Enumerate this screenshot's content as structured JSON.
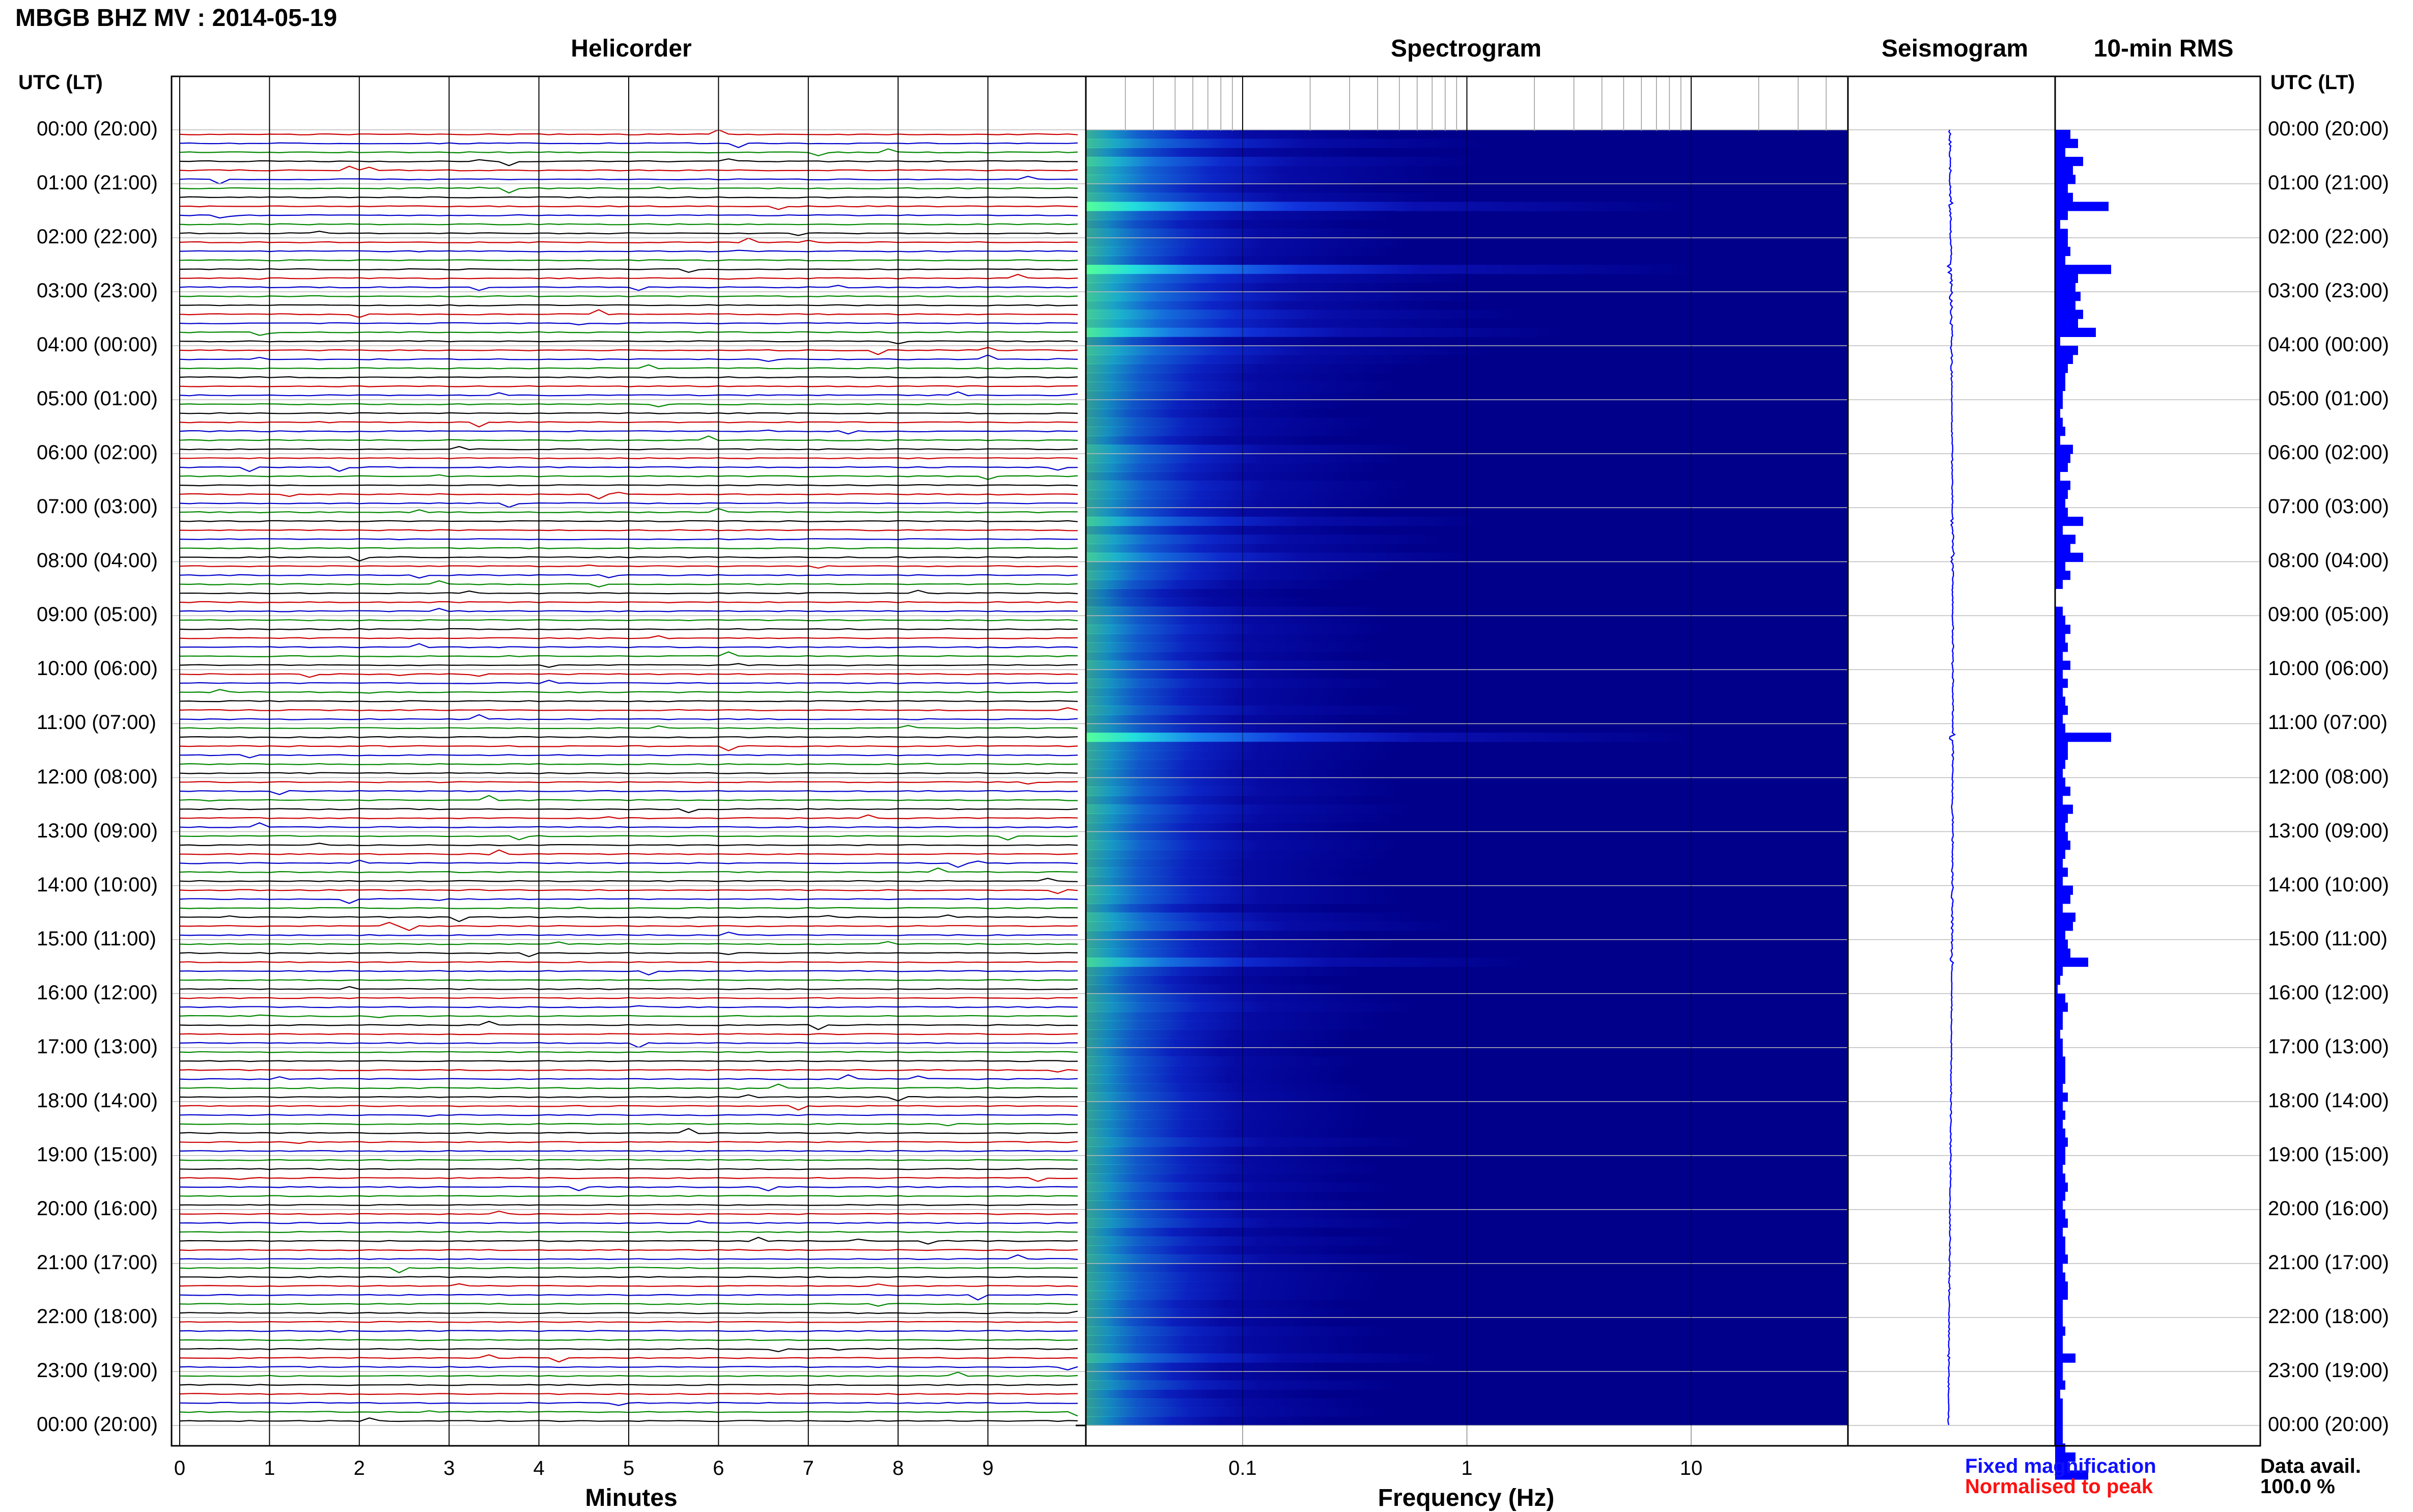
{
  "header": {
    "title": "MBGB BHZ MV : 2014-05-19"
  },
  "panels": {
    "helicorder": "Helicorder",
    "spectrogram": "Spectrogram",
    "seismogram": "Seismogram",
    "rms": "10-min RMS"
  },
  "axes": {
    "utc_left": "UTC (LT)",
    "utc_right": "UTC (LT)",
    "minutes_label": "Minutes",
    "frequency_label": "Frequency (Hz)"
  },
  "legend": {
    "fixed": "Fixed magnification",
    "normalised": "Normalised to peak"
  },
  "availability": {
    "label": "Data avail.",
    "value": "100.0 %"
  },
  "colors": {
    "trace_cycle": [
      "#cc0000",
      "#0000cc",
      "#008800",
      "#000000"
    ],
    "rms_bar": "#0000ff",
    "seismo_trace": "#0000ff",
    "spec_low": "#00008b",
    "spec_high": "#aaff55"
  },
  "chart_data": [
    {
      "type": "line",
      "panel": "Helicorder",
      "xlabel": "Minutes",
      "xlim": [
        0,
        10
      ],
      "x_ticks": [
        0,
        1,
        2,
        3,
        4,
        5,
        6,
        7,
        8,
        9
      ],
      "rows_per_hour": 6,
      "row_labels": [
        "00:00 (20:00)",
        "01:00 (21:00)",
        "02:00 (22:00)",
        "03:00 (23:00)",
        "04:00 (00:00)",
        "05:00 (01:00)",
        "06:00 (02:00)",
        "07:00 (03:00)",
        "08:00 (04:00)",
        "09:00 (05:00)",
        "10:00 (06:00)",
        "11:00 (07:00)",
        "12:00 (08:00)",
        "13:00 (09:00)",
        "14:00 (10:00)",
        "15:00 (11:00)",
        "16:00 (12:00)",
        "17:00 (13:00)",
        "18:00 (14:00)",
        "19:00 (15:00)",
        "20:00 (16:00)",
        "21:00 (17:00)",
        "22:00 (18:00)",
        "23:00 (19:00)",
        "00:00 (20:00)"
      ]
    },
    {
      "type": "heatmap",
      "panel": "Spectrogram",
      "xlabel": "Frequency (Hz)",
      "x_scale": "log",
      "xlim": [
        0.02,
        50
      ],
      "x_ticks": [
        0.1,
        1,
        10
      ],
      "x_tick_labels": [
        "0.1",
        "1",
        "10"
      ]
    },
    {
      "type": "line",
      "panel": "Seismogram"
    },
    {
      "type": "bar",
      "panel": "10-min RMS",
      "orientation": "horizontal",
      "values": [
        0.3,
        0.45,
        0.2,
        0.55,
        0.35,
        0.4,
        0.25,
        0.35,
        1.05,
        0.25,
        0.1,
        0.25,
        0.25,
        0.3,
        0.2,
        1.1,
        0.45,
        0.4,
        0.5,
        0.4,
        0.55,
        0.45,
        0.8,
        0.1,
        0.45,
        0.35,
        0.25,
        0.2,
        0.2,
        0.15,
        0.15,
        0.1,
        0.15,
        0.2,
        0.1,
        0.35,
        0.3,
        0.25,
        0.1,
        0.3,
        0.25,
        0.2,
        0.25,
        0.55,
        0.15,
        0.4,
        0.3,
        0.55,
        0.2,
        0.3,
        0.15,
        0.0,
        0.0,
        0.15,
        0.2,
        0.3,
        0.2,
        0.25,
        0.15,
        0.3,
        0.15,
        0.25,
        0.15,
        0.2,
        0.25,
        0.15,
        0.2,
        1.1,
        0.25,
        0.25,
        0.2,
        0.15,
        0.2,
        0.3,
        0.15,
        0.35,
        0.25,
        0.2,
        0.25,
        0.3,
        0.2,
        0.15,
        0.25,
        0.15,
        0.35,
        0.3,
        0.15,
        0.4,
        0.35,
        0.2,
        0.25,
        0.3,
        0.65,
        0.15,
        0.1,
        0.05,
        0.2,
        0.25,
        0.15,
        0.15,
        0.1,
        0.15,
        0.15,
        0.2,
        0.2,
        0.2,
        0.15,
        0.25,
        0.15,
        0.2,
        0.15,
        0.2,
        0.25,
        0.2,
        0.2,
        0.15,
        0.2,
        0.25,
        0.2,
        0.15,
        0.2,
        0.25,
        0.15,
        0.2,
        0.2,
        0.25,
        0.15,
        0.2,
        0.25,
        0.25,
        0.15,
        0.15,
        0.15,
        0.2,
        0.15,
        0.15,
        0.4,
        0.15,
        0.15,
        0.2,
        0.1,
        0.15,
        0.15,
        0.15,
        0.15,
        0.15,
        0.2,
        0.4,
        0.25,
        0.65
      ]
    }
  ]
}
